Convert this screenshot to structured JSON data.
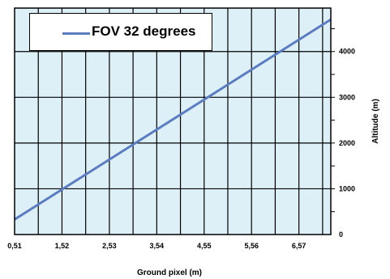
{
  "chart_data": {
    "type": "line",
    "xlabel": "Ground pixel (m)",
    "ylabel": "Altitude (m)",
    "x_ticks": [
      "0,51",
      "1,52",
      "2,53",
      "3,54",
      "4,55",
      "5,56",
      "6,57"
    ],
    "y_ticks": [
      "0",
      "1000",
      "2000",
      "3000",
      "4000"
    ],
    "xlim": [
      0.51,
      7.25
    ],
    "ylim": [
      0,
      4950
    ],
    "grid": true,
    "legend_placement": "top-left",
    "series": [
      {
        "name": "FOV 32 degrees",
        "color": "#5B7DBF",
        "x": [
          0.51,
          7.25
        ],
        "y": [
          330,
          4700
        ]
      }
    ],
    "plot_background": "#DDEFF7"
  }
}
